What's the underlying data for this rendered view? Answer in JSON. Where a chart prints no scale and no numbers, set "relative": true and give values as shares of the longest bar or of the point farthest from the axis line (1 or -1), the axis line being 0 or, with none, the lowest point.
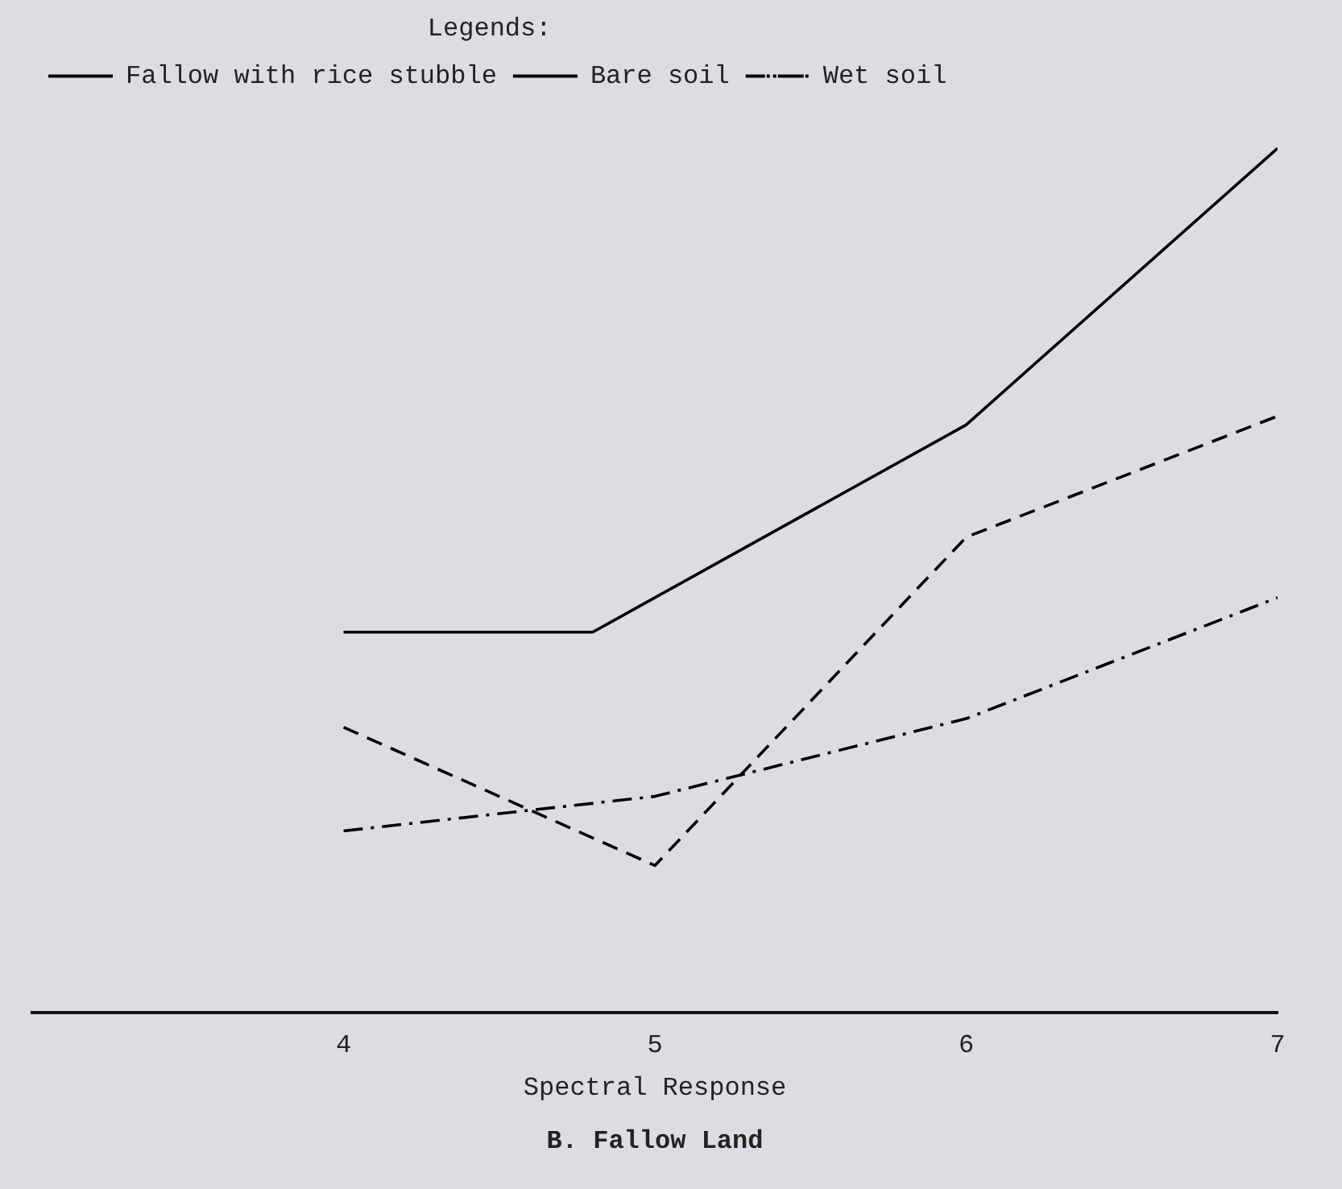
{
  "chart_data": {
    "type": "line",
    "title": "B. Fallow Land",
    "xlabel": "Spectral Response",
    "legend_title": "Legends:",
    "relative": true,
    "xlim": [
      3,
      7
    ],
    "xticks": [
      4,
      5,
      6,
      7
    ],
    "grid": false,
    "legend": "top left",
    "marker": "none",
    "series": [
      {
        "name": "Fallow with rice stubble",
        "color": "#000000",
        "line_style": "solid",
        "x": [
          4,
          4.8,
          6,
          7
        ],
        "values": [
          0.44,
          0.44,
          0.68,
          1
        ]
      },
      {
        "name": "Bare soil",
        "color": "#000000",
        "line_style": "dashed",
        "x": [
          4,
          5,
          6,
          7
        ],
        "values": [
          0.33,
          0.17,
          0.55,
          0.69
        ]
      },
      {
        "name": "Wet soil",
        "color": "#000000",
        "line_style": "dashdot",
        "x": [
          4,
          5,
          6,
          7
        ],
        "values": [
          0.21,
          0.25,
          0.34,
          0.48
        ]
      }
    ]
  }
}
